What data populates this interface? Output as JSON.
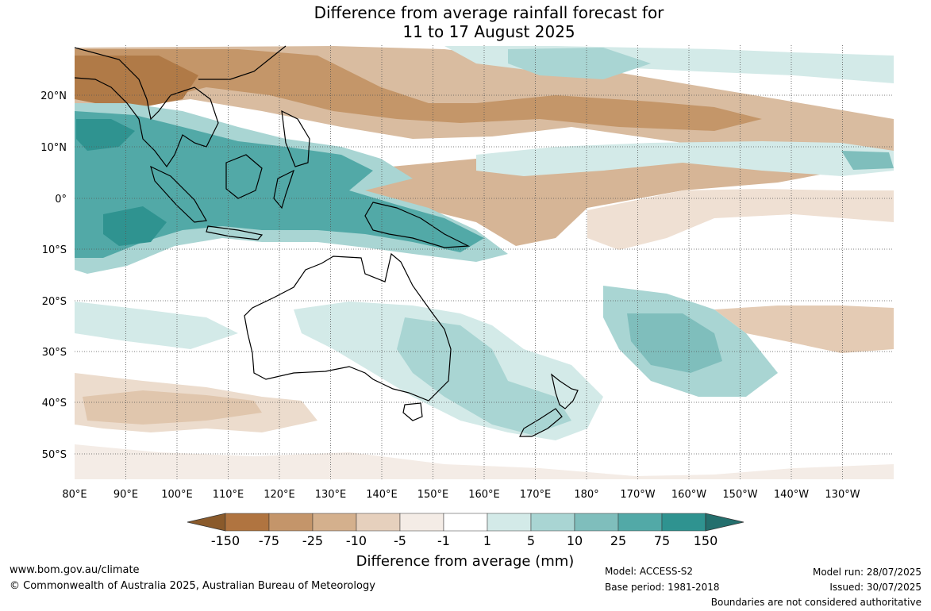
{
  "title_line1": "Difference from average rainfall forecast for",
  "title_line2": "11 to 17 August 2025",
  "lon_labels": [
    "80°E",
    "90°E",
    "100°E",
    "110°E",
    "120°E",
    "130°E",
    "140°E",
    "150°E",
    "160°E",
    "170°E",
    "180°",
    "170°W",
    "160°W",
    "150°W",
    "140°W",
    "130°W"
  ],
  "lat_labels": [
    "20°N",
    "10°N",
    "0°",
    "10°S",
    "20°S",
    "30°S",
    "40°S",
    "50°S"
  ],
  "colorbar": {
    "ticks": [
      "-150",
      "-75",
      "-25",
      "-10",
      "-5",
      "-1",
      "1",
      "5",
      "10",
      "25",
      "75",
      "150"
    ],
    "colors": [
      "#8a5a2b",
      "#b07440",
      "#c4956a",
      "#d4b08d",
      "#e6d0bd",
      "#f4ece6",
      "#ffffff",
      "#d3eae8",
      "#a9d5d3",
      "#7fbebc",
      "#52a9a7",
      "#2f9390",
      "#246f6d"
    ],
    "title": "Difference from average (mm)"
  },
  "footer": {
    "website": "www.bom.gov.au/climate",
    "copyright": "© Commonwealth of Australia 2025, Australian Bureau of Meteorology",
    "model": "Model: ACCESS-S2",
    "base_period": "Base period: 1981-2018",
    "model_run": "Model run: 28/07/2025",
    "issued": "Issued: 30/07/2025",
    "disclaimer": "Boundaries are not considered authoritative"
  }
}
